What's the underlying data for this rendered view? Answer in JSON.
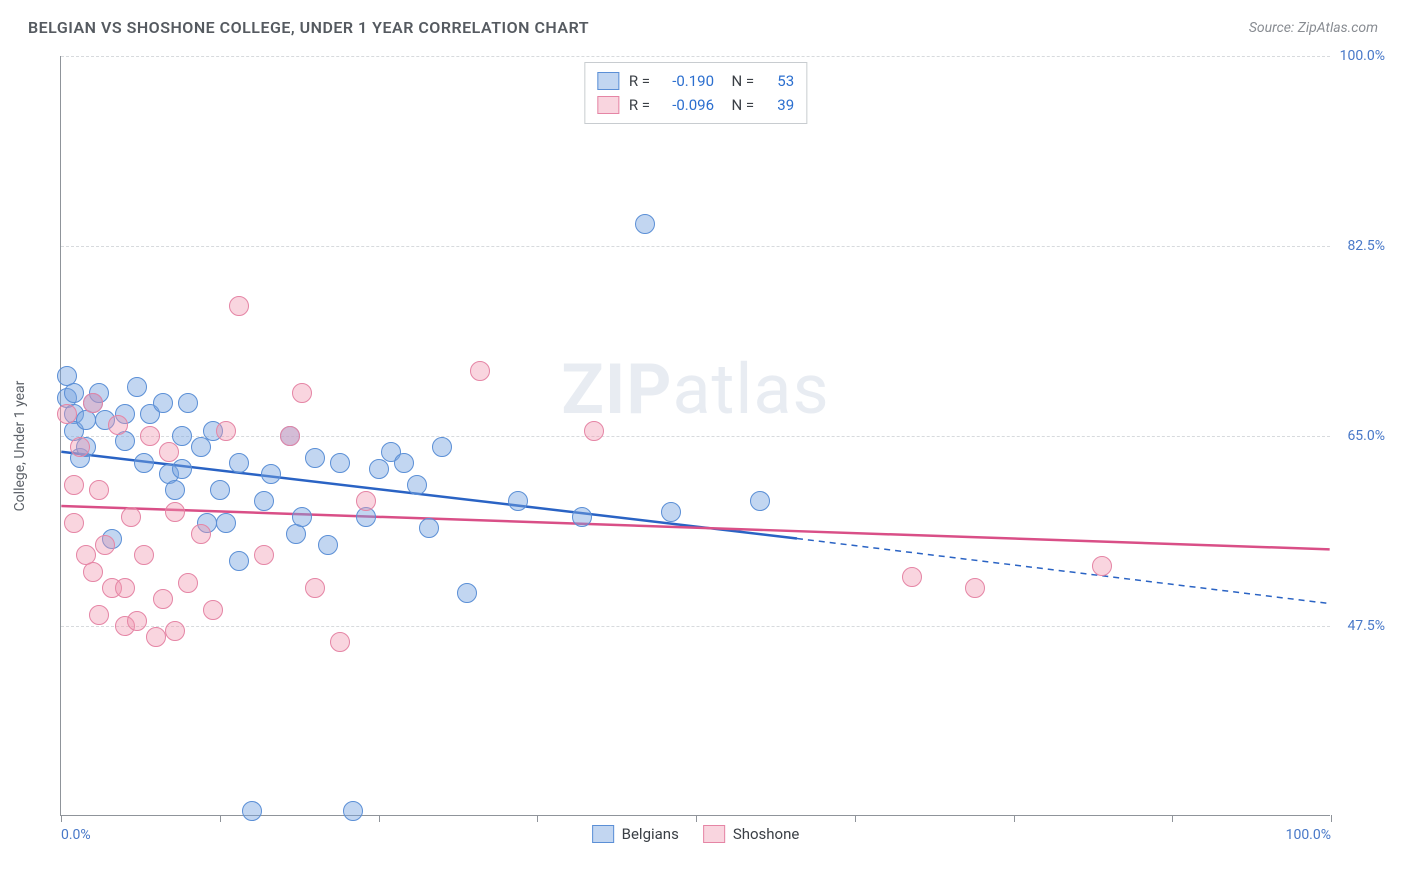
{
  "title": "BELGIAN VS SHOSHONE COLLEGE, UNDER 1 YEAR CORRELATION CHART",
  "source_prefix": "Source: ",
  "source_name": "ZipAtlas.com",
  "ylabel": "College, Under 1 year",
  "watermark_bold": "ZIP",
  "watermark_rest": "atlas",
  "chart": {
    "type": "scatter",
    "xlim": [
      0,
      100
    ],
    "ylim": [
      30,
      100
    ],
    "xtick_positions": [
      0,
      12.5,
      25,
      37.5,
      50,
      62.5,
      75,
      87.5,
      100
    ],
    "xtick_labels": {
      "0": "0.0%",
      "100": "100.0%"
    },
    "ygrid": [
      47.5,
      65.0,
      82.5,
      100.0
    ],
    "ytick_labels": [
      "47.5%",
      "65.0%",
      "82.5%",
      "100.0%"
    ],
    "grid_color": "#d7dadd",
    "axis_color": "#8f949a",
    "tick_label_color": "#4878c8",
    "background_color": "#ffffff",
    "marker_radius": 10,
    "series": [
      {
        "name": "Belgians",
        "fill": "rgba(120,165,225,0.45)",
        "stroke": "#5b8fd6",
        "line_color": "#2a63c4",
        "r_value": "-0.190",
        "n_value": "53",
        "trend": {
          "x1": 0,
          "y1": 63.5,
          "x2": 58,
          "y2": 55.5,
          "dash_x2": 100,
          "dash_y2": 49.5
        },
        "points": [
          [
            0.5,
            70.5
          ],
          [
            0.5,
            68.5
          ],
          [
            1,
            67
          ],
          [
            1,
            65.5
          ],
          [
            1,
            69
          ],
          [
            1.5,
            63
          ],
          [
            2,
            66.5
          ],
          [
            2,
            64
          ],
          [
            2.5,
            68
          ],
          [
            3,
            69
          ],
          [
            3.5,
            66.5
          ],
          [
            4,
            55.5
          ],
          [
            5,
            67
          ],
          [
            5,
            64.5
          ],
          [
            6,
            69.5
          ],
          [
            6.5,
            62.5
          ],
          [
            7,
            67
          ],
          [
            8,
            68
          ],
          [
            8.5,
            61.5
          ],
          [
            9,
            60
          ],
          [
            9.5,
            65
          ],
          [
            9.5,
            62
          ],
          [
            10,
            68
          ],
          [
            11,
            64
          ],
          [
            11.5,
            57
          ],
          [
            12,
            65.5
          ],
          [
            12.5,
            60
          ],
          [
            13,
            57
          ],
          [
            14,
            62.5
          ],
          [
            14,
            53.5
          ],
          [
            15,
            30.5
          ],
          [
            16,
            59
          ],
          [
            16.5,
            61.5
          ],
          [
            18,
            65
          ],
          [
            18.5,
            56
          ],
          [
            19,
            57.5
          ],
          [
            20,
            63
          ],
          [
            21,
            55
          ],
          [
            22,
            62.5
          ],
          [
            23,
            30.5
          ],
          [
            24,
            57.5
          ],
          [
            25,
            62
          ],
          [
            26,
            63.5
          ],
          [
            27,
            62.5
          ],
          [
            28,
            60.5
          ],
          [
            29,
            56.5
          ],
          [
            30,
            64
          ],
          [
            32,
            50.5
          ],
          [
            36,
            59
          ],
          [
            41,
            57.5
          ],
          [
            46,
            84.5
          ],
          [
            48,
            58
          ],
          [
            55,
            59
          ]
        ]
      },
      {
        "name": "Shoshone",
        "fill": "rgba(240,150,175,0.40)",
        "stroke": "#e585a5",
        "line_color": "#d94f87",
        "r_value": "-0.096",
        "n_value": "39",
        "trend": {
          "x1": 0,
          "y1": 58.5,
          "x2": 100,
          "y2": 54.5
        },
        "points": [
          [
            0.5,
            67
          ],
          [
            1,
            60.5
          ],
          [
            1,
            57
          ],
          [
            1.5,
            64
          ],
          [
            2,
            54
          ],
          [
            2.5,
            68
          ],
          [
            2.5,
            52.5
          ],
          [
            3,
            60
          ],
          [
            3,
            48.5
          ],
          [
            3.5,
            55
          ],
          [
            4,
            51
          ],
          [
            4.5,
            66
          ],
          [
            5,
            51
          ],
          [
            5,
            47.5
          ],
          [
            5.5,
            57.5
          ],
          [
            6,
            48
          ],
          [
            6.5,
            54
          ],
          [
            7,
            65
          ],
          [
            7.5,
            46.5
          ],
          [
            8,
            50
          ],
          [
            8.5,
            63.5
          ],
          [
            9,
            58
          ],
          [
            9,
            47
          ],
          [
            10,
            51.5
          ],
          [
            11,
            56
          ],
          [
            12,
            49
          ],
          [
            13,
            65.5
          ],
          [
            14,
            77
          ],
          [
            16,
            54
          ],
          [
            18,
            65
          ],
          [
            19,
            69
          ],
          [
            20,
            51
          ],
          [
            22,
            46
          ],
          [
            24,
            59
          ],
          [
            33,
            71
          ],
          [
            42,
            65.5
          ],
          [
            67,
            52
          ],
          [
            72,
            51
          ],
          [
            82,
            53
          ]
        ]
      }
    ]
  },
  "legend_top": {
    "r_label": "R =",
    "n_label": "N ="
  },
  "legend_bottom": [
    "Belgians",
    "Shoshone"
  ]
}
